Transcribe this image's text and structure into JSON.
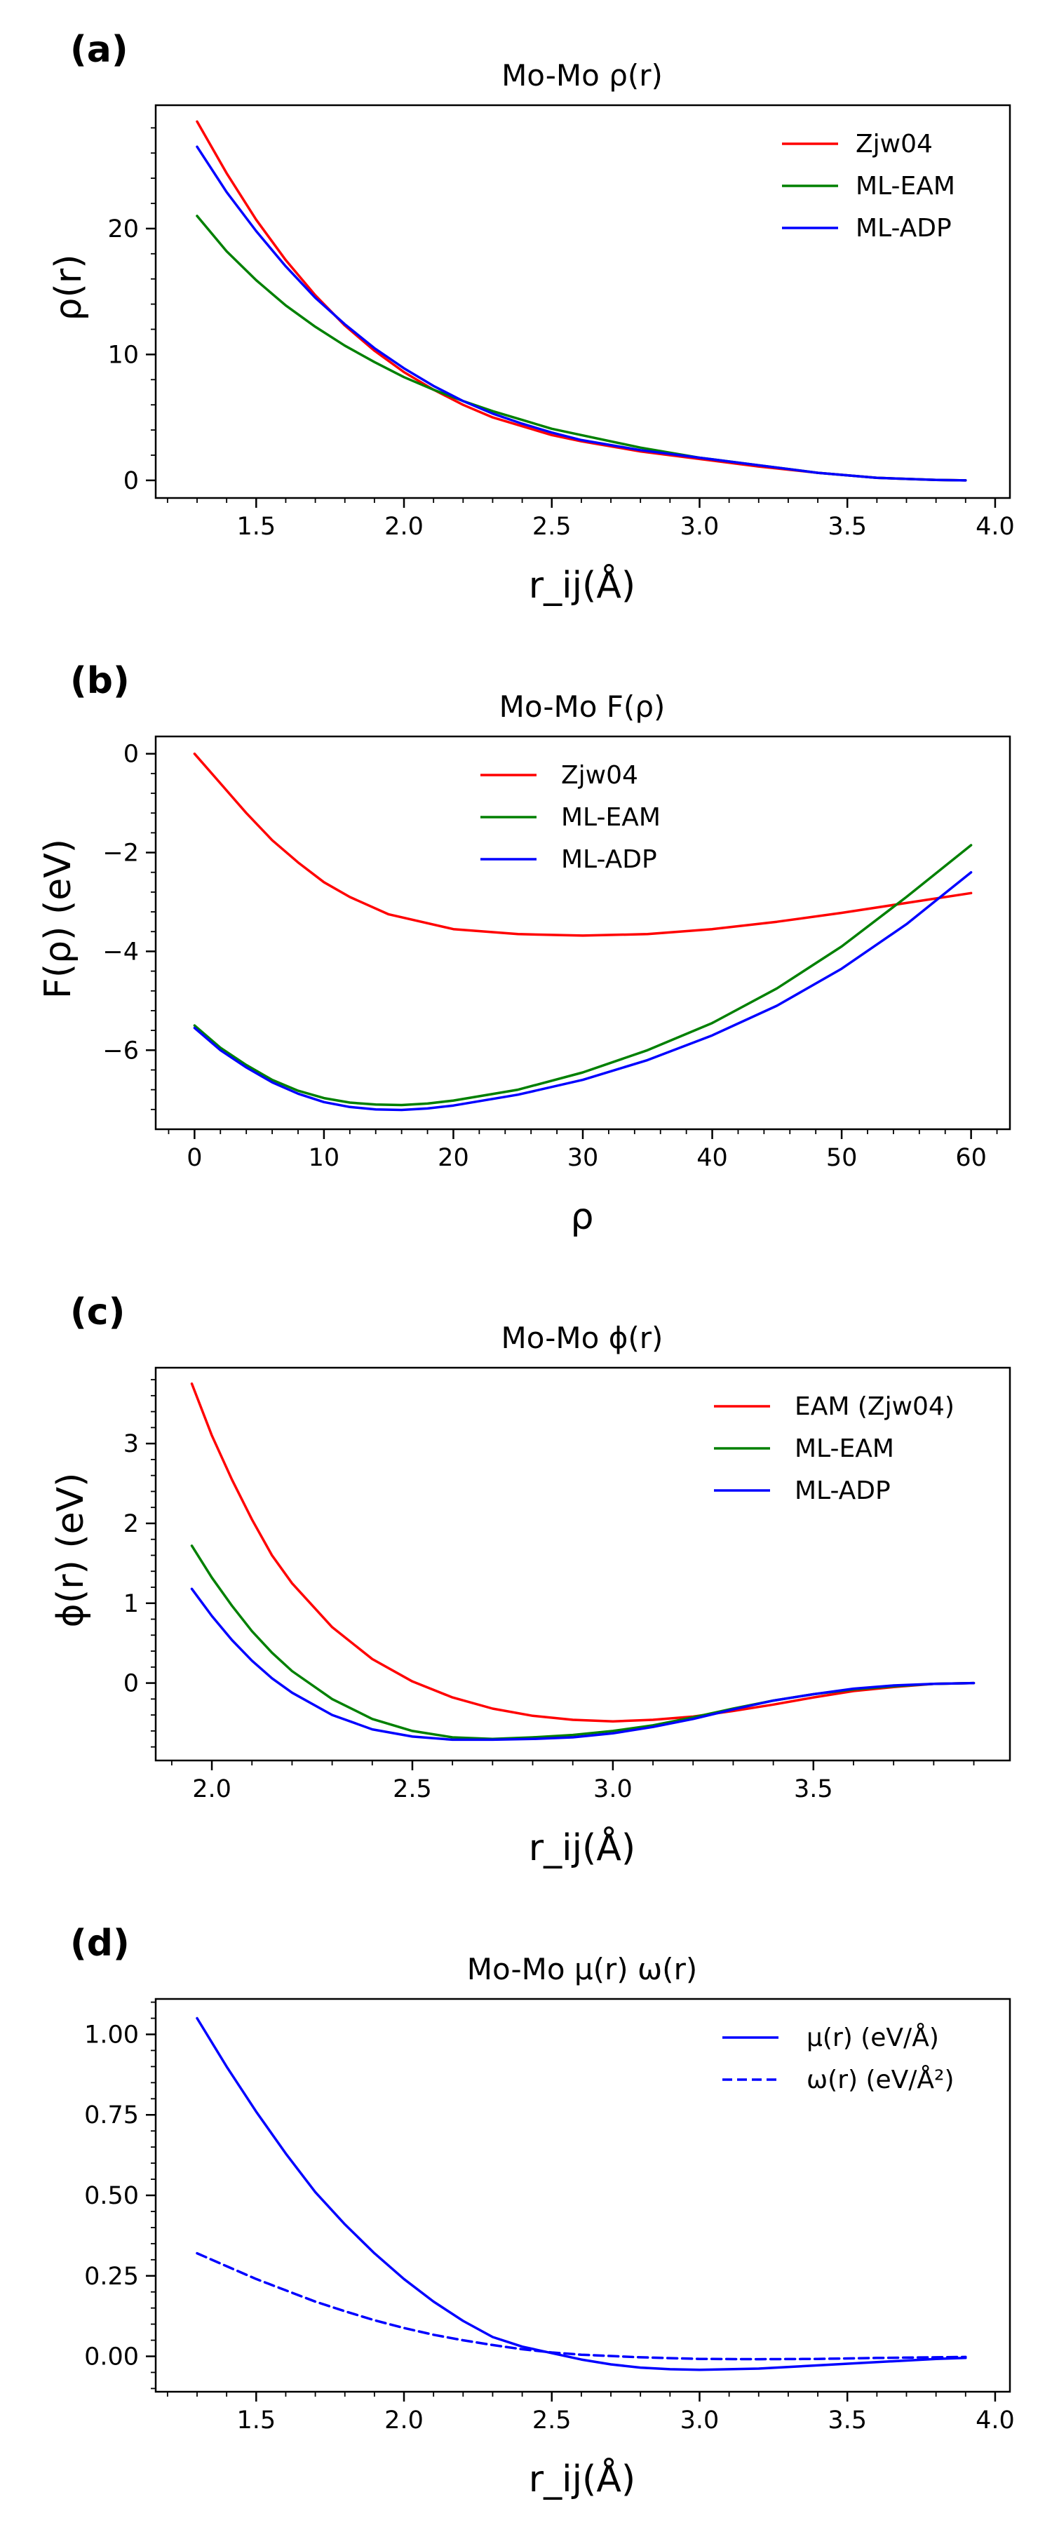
{
  "chart_data": [
    {
      "panel": "(a)",
      "type": "line",
      "title": "Mo-Mo ρ(r)",
      "xlabel": "r_ij(Å)",
      "ylabel": "ρ(r)",
      "xlim": [
        1.16,
        4.05
      ],
      "ylim": [
        -1.4,
        29.8
      ],
      "xticks": [
        1.5,
        2.0,
        2.5,
        3.0,
        3.5,
        4.0
      ],
      "xtick_labels": [
        "1.5",
        "2.0",
        "2.5",
        "3.0",
        "3.5",
        "4.0"
      ],
      "yticks": [
        0,
        10,
        20
      ],
      "ytick_labels": [
        "0",
        "10",
        "20"
      ],
      "legend_position": "upper-right",
      "series": [
        {
          "name": "Zjw04",
          "color": "#ff0000",
          "dash": "solid",
          "x": [
            1.3,
            1.4,
            1.5,
            1.6,
            1.7,
            1.8,
            1.9,
            2.0,
            2.1,
            2.2,
            2.3,
            2.4,
            2.5,
            2.6,
            2.8,
            3.0,
            3.2,
            3.4,
            3.6,
            3.8,
            3.9
          ],
          "y": [
            28.5,
            24.4,
            20.7,
            17.5,
            14.7,
            12.3,
            10.3,
            8.6,
            7.2,
            6.0,
            5.0,
            4.3,
            3.6,
            3.1,
            2.3,
            1.7,
            1.1,
            0.6,
            0.2,
            0.03,
            0.0
          ]
        },
        {
          "name": "ML-EAM",
          "color": "#008000",
          "dash": "solid",
          "x": [
            1.3,
            1.4,
            1.5,
            1.6,
            1.7,
            1.8,
            1.9,
            2.0,
            2.1,
            2.2,
            2.3,
            2.4,
            2.5,
            2.6,
            2.8,
            3.0,
            3.2,
            3.4,
            3.6,
            3.8,
            3.9
          ],
          "y": [
            21.0,
            18.2,
            15.9,
            13.9,
            12.2,
            10.7,
            9.4,
            8.2,
            7.2,
            6.3,
            5.5,
            4.8,
            4.1,
            3.6,
            2.6,
            1.8,
            1.2,
            0.6,
            0.2,
            0.03,
            0.0
          ]
        },
        {
          "name": "ML-ADP",
          "color": "#0000ff",
          "dash": "solid",
          "x": [
            1.3,
            1.4,
            1.5,
            1.6,
            1.7,
            1.8,
            1.9,
            2.0,
            2.1,
            2.2,
            2.3,
            2.4,
            2.5,
            2.6,
            2.8,
            3.0,
            3.2,
            3.4,
            3.6,
            3.8,
            3.9
          ],
          "y": [
            26.5,
            22.9,
            19.8,
            17.0,
            14.5,
            12.4,
            10.5,
            8.9,
            7.5,
            6.3,
            5.3,
            4.5,
            3.8,
            3.2,
            2.4,
            1.8,
            1.2,
            0.6,
            0.2,
            0.03,
            0.0
          ]
        }
      ]
    },
    {
      "panel": "(b)",
      "type": "line",
      "title": "Mo-Mo F(ρ)",
      "xlabel": "ρ",
      "ylabel": "F(ρ) (eV)",
      "xlim": [
        -3,
        63
      ],
      "ylim": [
        -7.6,
        0.35
      ],
      "xticks": [
        0,
        10,
        20,
        30,
        40,
        50,
        60
      ],
      "xtick_labels": [
        "0",
        "10",
        "20",
        "30",
        "40",
        "50",
        "60"
      ],
      "yticks": [
        0,
        -2,
        -4,
        -6
      ],
      "ytick_labels": [
        "0",
        "−2",
        "−4",
        "−6"
      ],
      "legend_position": "upper-center",
      "series": [
        {
          "name": "Zjw04",
          "color": "#ff0000",
          "dash": "solid",
          "x": [
            0,
            2,
            4,
            6,
            8,
            10,
            12,
            15,
            20,
            25,
            30,
            35,
            40,
            45,
            50,
            55,
            60
          ],
          "y": [
            0.0,
            -0.6,
            -1.2,
            -1.75,
            -2.2,
            -2.6,
            -2.9,
            -3.25,
            -3.55,
            -3.65,
            -3.68,
            -3.65,
            -3.55,
            -3.4,
            -3.22,
            -3.02,
            -2.82
          ]
        },
        {
          "name": "ML-EAM",
          "color": "#008000",
          "dash": "solid",
          "x": [
            0,
            2,
            4,
            6,
            8,
            10,
            12,
            14,
            16,
            18,
            20,
            25,
            30,
            35,
            40,
            45,
            50,
            55,
            60
          ],
          "y": [
            -5.5,
            -5.95,
            -6.3,
            -6.6,
            -6.82,
            -6.97,
            -7.06,
            -7.1,
            -7.11,
            -7.08,
            -7.02,
            -6.8,
            -6.45,
            -6.0,
            -5.45,
            -4.75,
            -3.9,
            -2.9,
            -1.85
          ]
        },
        {
          "name": "ML-ADP",
          "color": "#0000ff",
          "dash": "solid",
          "x": [
            0,
            2,
            4,
            6,
            8,
            10,
            12,
            14,
            16,
            18,
            20,
            25,
            30,
            35,
            40,
            45,
            50,
            55,
            60
          ],
          "y": [
            -5.55,
            -6.0,
            -6.35,
            -6.65,
            -6.88,
            -7.05,
            -7.15,
            -7.2,
            -7.21,
            -7.18,
            -7.12,
            -6.9,
            -6.6,
            -6.2,
            -5.7,
            -5.1,
            -4.35,
            -3.45,
            -2.4
          ]
        }
      ]
    },
    {
      "panel": "(c)",
      "type": "line",
      "title": "Mo-Mo ϕ(r)",
      "xlabel": "r_ij(Å)",
      "ylabel": "ϕ(r) (eV)",
      "xlim": [
        1.86,
        3.99
      ],
      "ylim": [
        -0.97,
        3.95
      ],
      "xticks": [
        2.0,
        2.5,
        3.0,
        3.5
      ],
      "xtick_labels": [
        "2.0",
        "2.5",
        "3.0",
        "3.5"
      ],
      "yticks": [
        0,
        1,
        2,
        3
      ],
      "ytick_labels": [
        "0",
        "1",
        "2",
        "3"
      ],
      "legend_position": "upper-right",
      "series": [
        {
          "name": "EAM (Zjw04)",
          "color": "#ff0000",
          "dash": "solid",
          "x": [
            1.95,
            2.0,
            2.05,
            2.1,
            2.15,
            2.2,
            2.3,
            2.4,
            2.5,
            2.6,
            2.7,
            2.8,
            2.9,
            3.0,
            3.1,
            3.2,
            3.3,
            3.4,
            3.5,
            3.6,
            3.7,
            3.8,
            3.9
          ],
          "y": [
            3.75,
            3.1,
            2.55,
            2.05,
            1.6,
            1.25,
            0.7,
            0.3,
            0.02,
            -0.18,
            -0.32,
            -0.41,
            -0.46,
            -0.48,
            -0.46,
            -0.42,
            -0.35,
            -0.27,
            -0.18,
            -0.1,
            -0.05,
            -0.01,
            0.0
          ]
        },
        {
          "name": "ML-EAM",
          "color": "#008000",
          "dash": "solid",
          "x": [
            1.95,
            2.0,
            2.05,
            2.1,
            2.15,
            2.2,
            2.3,
            2.4,
            2.5,
            2.6,
            2.7,
            2.8,
            2.9,
            3.0,
            3.1,
            3.2,
            3.3,
            3.4,
            3.5,
            3.6,
            3.7,
            3.8,
            3.9
          ],
          "y": [
            1.72,
            1.32,
            0.97,
            0.65,
            0.38,
            0.15,
            -0.2,
            -0.45,
            -0.6,
            -0.68,
            -0.7,
            -0.68,
            -0.65,
            -0.6,
            -0.53,
            -0.43,
            -0.32,
            -0.22,
            -0.14,
            -0.08,
            -0.04,
            -0.01,
            0.0
          ]
        },
        {
          "name": "ML-ADP",
          "color": "#0000ff",
          "dash": "solid",
          "x": [
            1.95,
            2.0,
            2.05,
            2.1,
            2.15,
            2.2,
            2.3,
            2.4,
            2.5,
            2.6,
            2.7,
            2.8,
            2.9,
            3.0,
            3.1,
            3.2,
            3.3,
            3.4,
            3.5,
            3.6,
            3.7,
            3.8,
            3.9
          ],
          "y": [
            1.18,
            0.84,
            0.54,
            0.28,
            0.06,
            -0.12,
            -0.4,
            -0.58,
            -0.67,
            -0.71,
            -0.71,
            -0.7,
            -0.68,
            -0.63,
            -0.55,
            -0.45,
            -0.33,
            -0.22,
            -0.14,
            -0.07,
            -0.03,
            -0.01,
            0.0
          ]
        }
      ]
    },
    {
      "panel": "(d)",
      "type": "line",
      "title": "Mo-Mo μ(r) ω(r)",
      "xlabel": "r_ij(Å)",
      "ylabel": "",
      "xlim": [
        1.16,
        4.05
      ],
      "ylim": [
        -0.11,
        1.11
      ],
      "xticks": [
        1.5,
        2.0,
        2.5,
        3.0,
        3.5,
        4.0
      ],
      "xtick_labels": [
        "1.5",
        "2.0",
        "2.5",
        "3.0",
        "3.5",
        "4.0"
      ],
      "yticks": [
        0.0,
        0.25,
        0.5,
        0.75,
        1.0
      ],
      "ytick_labels": [
        "0.00",
        "0.25",
        "0.50",
        "0.75",
        "1.00"
      ],
      "legend_position": "upper-right",
      "series": [
        {
          "name": "μ(r) (eV/Å)",
          "color": "#0000ff",
          "dash": "solid",
          "x": [
            1.3,
            1.4,
            1.5,
            1.6,
            1.7,
            1.8,
            1.9,
            2.0,
            2.1,
            2.2,
            2.3,
            2.4,
            2.5,
            2.6,
            2.7,
            2.8,
            2.9,
            3.0,
            3.2,
            3.4,
            3.6,
            3.8,
            3.9
          ],
          "y": [
            1.05,
            0.9,
            0.76,
            0.63,
            0.51,
            0.41,
            0.32,
            0.24,
            0.17,
            0.11,
            0.06,
            0.03,
            0.01,
            -0.01,
            -0.025,
            -0.035,
            -0.04,
            -0.042,
            -0.038,
            -0.028,
            -0.018,
            -0.008,
            -0.005
          ]
        },
        {
          "name": "ω(r) (eV/Å²)",
          "color": "#0000ff",
          "dash": "dashed",
          "x": [
            1.3,
            1.4,
            1.5,
            1.6,
            1.7,
            1.8,
            1.9,
            2.0,
            2.1,
            2.2,
            2.3,
            2.4,
            2.5,
            2.6,
            2.8,
            3.0,
            3.2,
            3.4,
            3.6,
            3.8,
            3.9
          ],
          "y": [
            0.32,
            0.28,
            0.24,
            0.205,
            0.17,
            0.14,
            0.112,
            0.088,
            0.067,
            0.05,
            0.035,
            0.022,
            0.012,
            0.005,
            -0.003,
            -0.008,
            -0.009,
            -0.008,
            -0.005,
            -0.003,
            -0.002
          ]
        }
      ]
    }
  ]
}
